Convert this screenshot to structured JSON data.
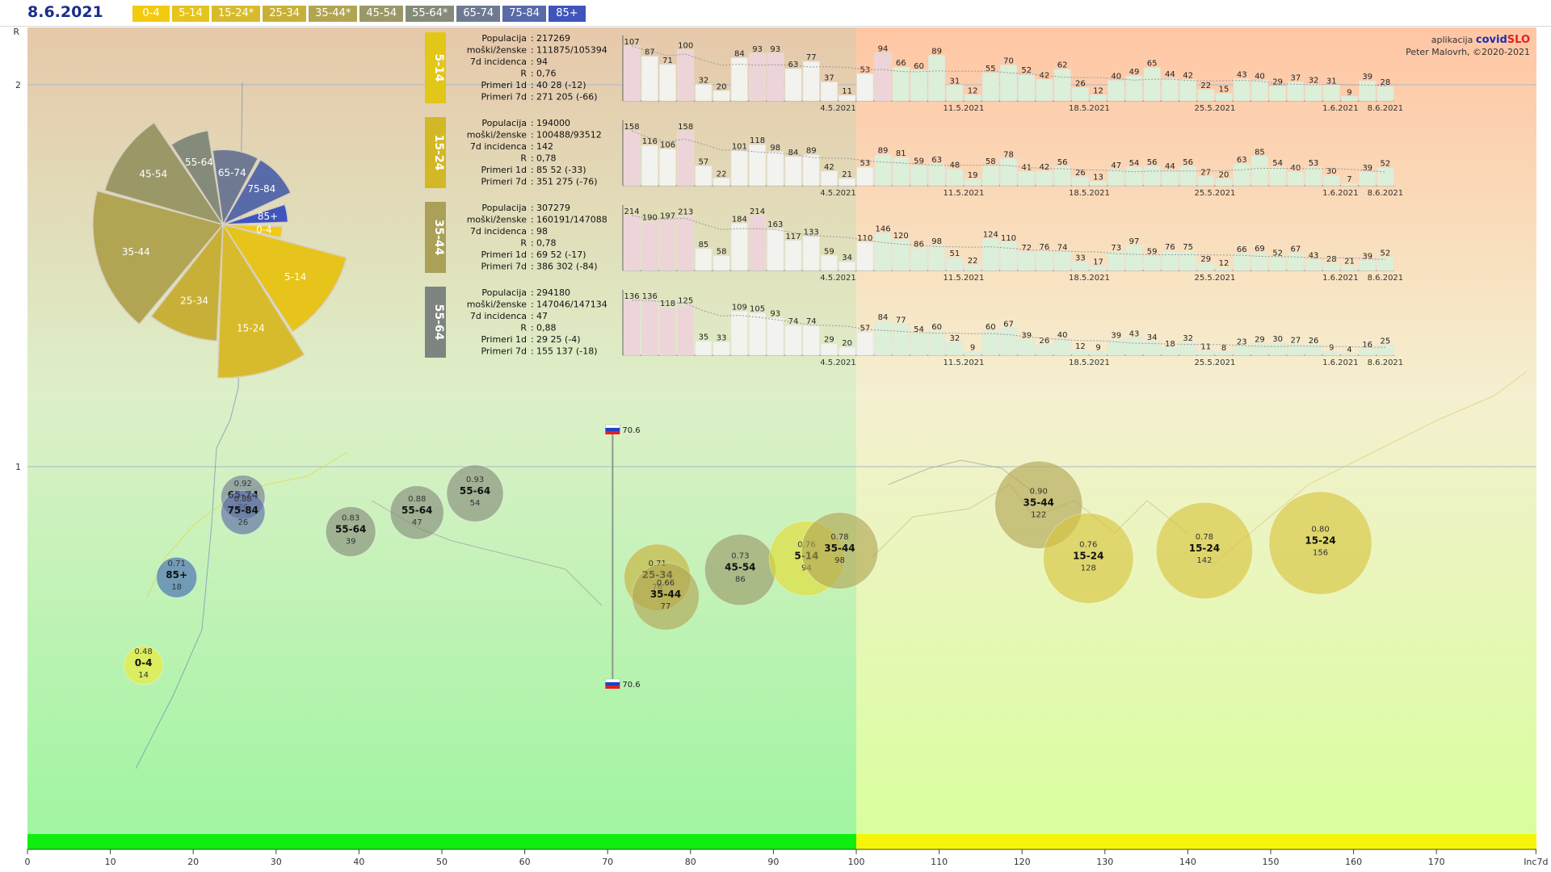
{
  "header": {
    "date": "8.6.2021",
    "legend": [
      {
        "label": "0-4",
        "color": "#f2ca10",
        "text_color": "#ffffff"
      },
      {
        "label": "5-14",
        "color": "#e6c41c",
        "text_color": "#ffffff"
      },
      {
        "label": "15-24*",
        "color": "#d8bb2c",
        "text_color": "#ffffff"
      },
      {
        "label": "25-34",
        "color": "#c8b038",
        "text_color": "#ffffff"
      },
      {
        "label": "35-44*",
        "color": "#b1a553",
        "text_color": "#ffffff"
      },
      {
        "label": "45-54",
        "color": "#9b9868",
        "text_color": "#ffffff"
      },
      {
        "label": "55-64*",
        "color": "#858b7a",
        "text_color": "#ffffff"
      },
      {
        "label": "65-74",
        "color": "#6f7a92",
        "text_color": "#ffffff"
      },
      {
        "label": "75-84",
        "color": "#586aa8",
        "text_color": "#ffffff"
      },
      {
        "label": "85+",
        "color": "#3f55bd",
        "text_color": "#ffffff"
      }
    ]
  },
  "credit": {
    "app_prefix": "aplikacija",
    "app_name_a": "covid",
    "app_name_b": "SLO",
    "author": "Peter Malovrh, ©2020-2021"
  },
  "chart_data": [
    {
      "type": "scatter",
      "xlabel": "Inc7d",
      "ylabel": "R",
      "xlim": [
        0,
        182
      ],
      "ylim": [
        0,
        2.2
      ],
      "x_ticks": [
        "0",
        "10",
        "20",
        "30",
        "40",
        "50",
        "60",
        "70",
        "80",
        "90",
        "100",
        "110",
        "120",
        "130",
        "140",
        "150",
        "160",
        "170",
        "Inc7d"
      ],
      "y_ticks": [
        "2",
        "1"
      ],
      "threshold_x": 100,
      "reference_marker": {
        "x": 70.6,
        "label_top": "70.6",
        "label_bottom": "70.6"
      },
      "bubbles": [
        {
          "group": "0-4",
          "r": 0.48,
          "inc": 14,
          "color": "#f2ea30"
        },
        {
          "group": "85+",
          "r": 0.71,
          "inc": 18,
          "color": "#3f66b5"
        },
        {
          "group": "65-74",
          "r": 0.92,
          "inc": 26,
          "color": "#6f7a92"
        },
        {
          "group": "75-84",
          "r": 0.88,
          "inc": 26,
          "color": "#586aa8"
        },
        {
          "group": "55-64",
          "r": 0.83,
          "inc": 39,
          "color": "#858b7a"
        },
        {
          "group": "55-64",
          "r": 0.88,
          "inc": 47,
          "color": "#858b7a"
        },
        {
          "group": "55-64",
          "r": 0.93,
          "inc": 54,
          "color": "#858b7a"
        },
        {
          "group": "25-34",
          "r": 0.71,
          "inc": 76,
          "color": "#c8b038"
        },
        {
          "group": "35-44",
          "r": 0.66,
          "inc": 77,
          "color": "#b1a553"
        },
        {
          "group": "45-54",
          "r": 0.73,
          "inc": 86,
          "color": "#9b9868"
        },
        {
          "group": "5-14",
          "r": 0.76,
          "inc": 94,
          "color": "#e6dd30"
        },
        {
          "group": "35-44",
          "r": 0.78,
          "inc": 98,
          "color": "#b1a553"
        },
        {
          "group": "35-44",
          "r": 0.9,
          "inc": 122,
          "color": "#b1a553"
        },
        {
          "group": "15-24",
          "r": 0.76,
          "inc": 128,
          "color": "#d8c43c"
        },
        {
          "group": "15-24",
          "r": 0.78,
          "inc": 142,
          "color": "#d8c43c"
        },
        {
          "group": "15-24",
          "r": 0.8,
          "inc": 156,
          "color": "#d8c43c"
        }
      ]
    },
    {
      "type": "pie",
      "title": "",
      "labels": [
        "0-4",
        "5-14",
        "15-24",
        "25-34",
        "35-44",
        "45-54",
        "55-64",
        "65-74",
        "75-84",
        "85+"
      ],
      "values": [
        14,
        94,
        142,
        76,
        98,
        86,
        47,
        26,
        26,
        18
      ],
      "colors": [
        "#f2ca10",
        "#e6c41c",
        "#d8bb2c",
        "#c8b038",
        "#b1a553",
        "#9b9868",
        "#858b7a",
        "#6f7a92",
        "#586aa8",
        "#3f55bd"
      ]
    },
    {
      "type": "bar",
      "panel": "5-14",
      "panel_color": "#e2c618",
      "stats": [
        {
          "label": "Populacija",
          "value": "217269"
        },
        {
          "label": "moški/ženske",
          "value": "111875/105394"
        },
        {
          "label": "7d incidenca",
          "value": "94"
        },
        {
          "label": "R",
          "value": "0,76"
        },
        {
          "label": "Primeri 1d",
          "value": "40 28 (-12)"
        },
        {
          "label": "Primeri 7d",
          "value": "271 205 (-66)"
        }
      ],
      "x_tick_labels": [
        "4.5.2021",
        "11.5.2021",
        "18.5.2021",
        "25.5.2021",
        "1.6.2021",
        "8.6.2021"
      ],
      "values": [
        107,
        87,
        71,
        100,
        32,
        20,
        84,
        93,
        93,
        63,
        77,
        37,
        11,
        53,
        94,
        66,
        60,
        89,
        31,
        12,
        55,
        70,
        52,
        42,
        62,
        26,
        12,
        40,
        49,
        65,
        44,
        42,
        22,
        15,
        43,
        40,
        29,
        37,
        32,
        31,
        9,
        39,
        28
      ]
    },
    {
      "type": "bar",
      "panel": "15-24",
      "panel_color": "#d2b824",
      "stats": [
        {
          "label": "Populacija",
          "value": "194000"
        },
        {
          "label": "moški/ženske",
          "value": "100488/93512"
        },
        {
          "label": "7d incidenca",
          "value": "142"
        },
        {
          "label": "R",
          "value": "0,78"
        },
        {
          "label": "Primeri 1d",
          "value": "85 52 (-33)"
        },
        {
          "label": "Primeri 7d",
          "value": "351 275 (-76)"
        }
      ],
      "x_tick_labels": [
        "4.5.2021",
        "11.5.2021",
        "18.5.2021",
        "25.5.2021",
        "1.6.2021",
        "8.6.2021"
      ],
      "values": [
        158,
        116,
        106,
        158,
        57,
        22,
        101,
        118,
        98,
        84,
        89,
        42,
        21,
        53,
        89,
        81,
        59,
        63,
        48,
        19,
        58,
        78,
        41,
        42,
        56,
        26,
        13,
        47,
        54,
        56,
        44,
        56,
        27,
        20,
        63,
        85,
        54,
        40,
        53,
        30,
        7,
        39,
        52
      ]
    },
    {
      "type": "bar",
      "panel": "35-44",
      "panel_color": "#aaa058",
      "stats": [
        {
          "label": "Populacija",
          "value": "307279"
        },
        {
          "label": "moški/ženske",
          "value": "160191/147088"
        },
        {
          "label": "7d incidenca",
          "value": "98"
        },
        {
          "label": "R",
          "value": "0,78"
        },
        {
          "label": "Primeri 1d",
          "value": "69 52 (-17)"
        },
        {
          "label": "Primeri 7d",
          "value": "386 302 (-84)"
        }
      ],
      "x_tick_labels": [
        "4.5.2021",
        "11.5.2021",
        "18.5.2021",
        "25.5.2021",
        "1.6.2021",
        "8.6.2021"
      ],
      "values": [
        214,
        190,
        197,
        213,
        85,
        58,
        184,
        214,
        163,
        117,
        133,
        59,
        34,
        110,
        146,
        120,
        86,
        98,
        51,
        22,
        124,
        110,
        72,
        76,
        74,
        33,
        17,
        73,
        97,
        59,
        76,
        75,
        29,
        12,
        66,
        69,
        52,
        67,
        43,
        28,
        21,
        39,
        52
      ]
    },
    {
      "type": "bar",
      "panel": "55-64",
      "panel_color": "#7e8480",
      "stats": [
        {
          "label": "Populacija",
          "value": "294180"
        },
        {
          "label": "moški/ženske",
          "value": "147046/147134"
        },
        {
          "label": "7d incidenca",
          "value": "47"
        },
        {
          "label": "R",
          "value": "0,88"
        },
        {
          "label": "Primeri 1d",
          "value": "29 25 (-4)"
        },
        {
          "label": "Primeri 7d",
          "value": "155 137 (-18)"
        }
      ],
      "x_tick_labels": [
        "4.5.2021",
        "11.5.2021",
        "18.5.2021",
        "25.5.2021",
        "1.6.2021",
        "8.6.2021"
      ],
      "values": [
        136,
        136,
        118,
        125,
        35,
        33,
        109,
        105,
        93,
        74,
        74,
        29,
        20,
        57,
        84,
        77,
        54,
        60,
        32,
        9,
        60,
        67,
        39,
        26,
        40,
        12,
        9,
        39,
        43,
        34,
        18,
        32,
        11,
        8,
        23,
        29,
        30,
        27,
        26,
        9,
        4,
        16,
        25
      ]
    }
  ]
}
